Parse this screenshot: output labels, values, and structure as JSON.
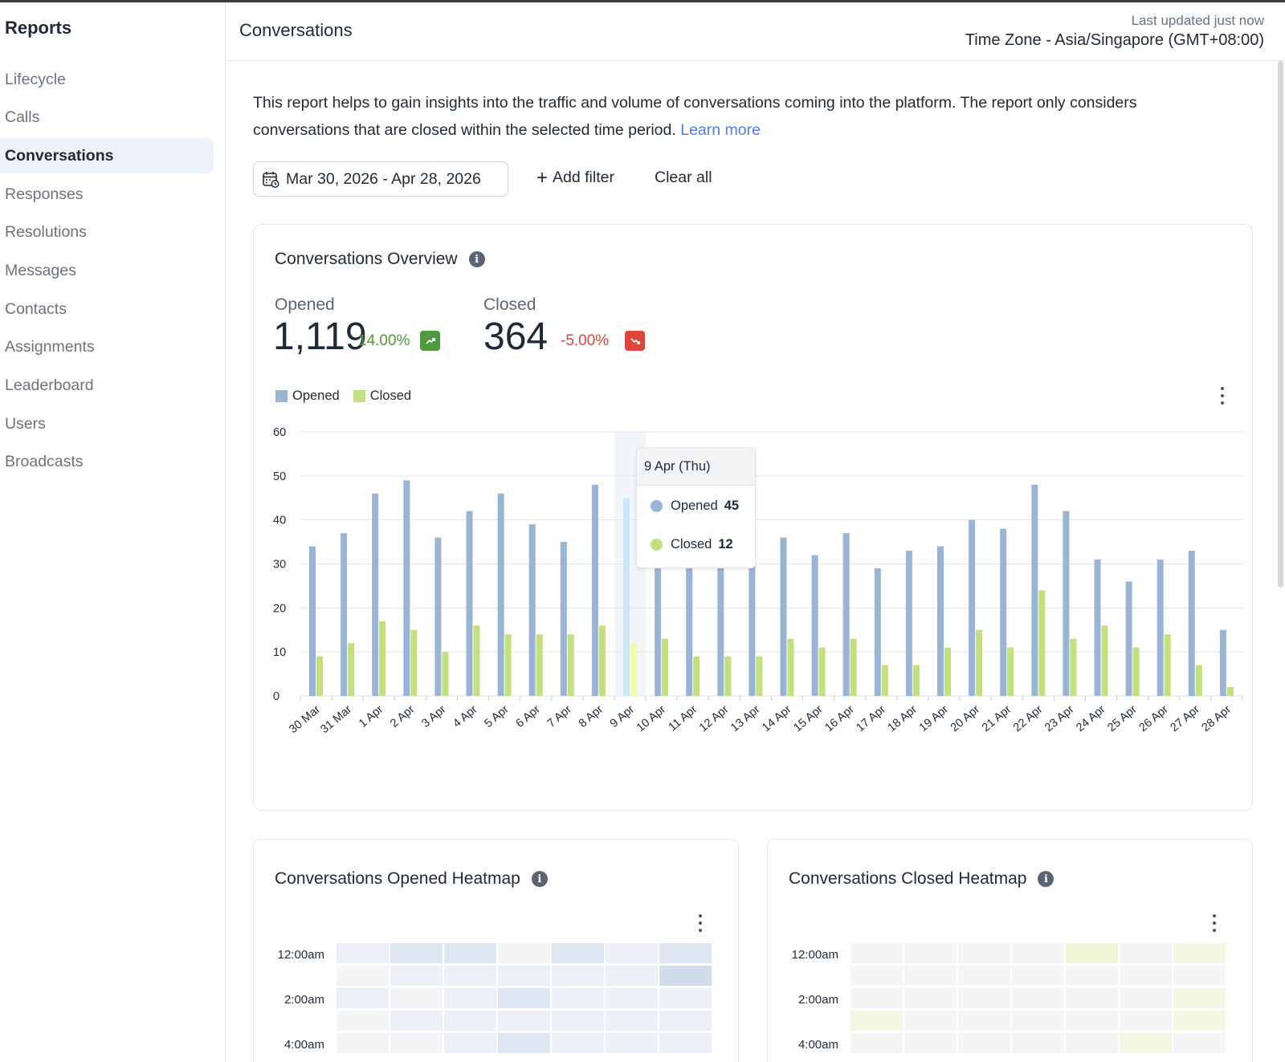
{
  "sidebar": {
    "title": "Reports",
    "items": [
      {
        "label": "Lifecycle",
        "active": false
      },
      {
        "label": "Calls",
        "active": false
      },
      {
        "label": "Conversations",
        "active": true
      },
      {
        "label": "Responses",
        "active": false
      },
      {
        "label": "Resolutions",
        "active": false
      },
      {
        "label": "Messages",
        "active": false
      },
      {
        "label": "Contacts",
        "active": false
      },
      {
        "label": "Assignments",
        "active": false
      },
      {
        "label": "Leaderboard",
        "active": false
      },
      {
        "label": "Users",
        "active": false
      },
      {
        "label": "Broadcasts",
        "active": false
      }
    ]
  },
  "header": {
    "title": "Conversations",
    "last_updated": "Last updated just now",
    "timezone": "Time Zone - Asia/Singapore (GMT+08:00)"
  },
  "description": {
    "text": "This report helps to gain insights into the traffic and volume of conversations coming into the platform. The report only considers conversations that are closed within the selected time period.",
    "learn_more": "Learn more"
  },
  "filters": {
    "date_range": "Mar 30, 2026 - Apr 28, 2026",
    "add_filter": "Add filter",
    "clear_all": "Clear all"
  },
  "overview": {
    "title": "Conversations Overview",
    "opened": {
      "label": "Opened",
      "value": "1,119",
      "change": "14.00%",
      "trend": "up"
    },
    "closed": {
      "label": "Closed",
      "value": "364",
      "change": "-5.00%",
      "trend": "down"
    },
    "tooltip": {
      "date": "9 Apr (Thu)",
      "opened_label": "Opened",
      "opened_value": "45",
      "closed_label": "Closed",
      "closed_value": "12"
    }
  },
  "colors": {
    "opened": "#9ab4d6",
    "closed": "#c2e07e",
    "highlight_opened": "#cde9f8",
    "highlight_closed": "#f4f9a8",
    "positive": "#4f9a3e",
    "negative": "#e0453b",
    "link": "#4a7df0"
  },
  "chart_data": {
    "type": "bar",
    "categories": [
      "30 Mar",
      "31 Mar",
      "1 Apr",
      "2 Apr",
      "3 Apr",
      "4 Apr",
      "5 Apr",
      "6 Apr",
      "7 Apr",
      "8 Apr",
      "9 Apr",
      "10 Apr",
      "11 Apr",
      "12 Apr",
      "13 Apr",
      "14 Apr",
      "15 Apr",
      "16 Apr",
      "17 Apr",
      "18 Apr",
      "19 Apr",
      "20 Apr",
      "21 Apr",
      "22 Apr",
      "23 Apr",
      "24 Apr",
      "25 Apr",
      "26 Apr",
      "27 Apr",
      "28 Apr"
    ],
    "series": [
      {
        "name": "Opened",
        "values": [
          34,
          37,
          46,
          49,
          36,
          42,
          46,
          39,
          35,
          48,
          45,
          33,
          33,
          33,
          33,
          36,
          32,
          37,
          29,
          33,
          34,
          40,
          38,
          48,
          42,
          31,
          26,
          31,
          33,
          15
        ]
      },
      {
        "name": "Closed",
        "values": [
          9,
          12,
          17,
          15,
          10,
          16,
          14,
          14,
          14,
          16,
          12,
          13,
          9,
          9,
          9,
          13,
          11,
          13,
          7,
          7,
          11,
          15,
          11,
          24,
          13,
          16,
          11,
          14,
          7,
          2
        ]
      }
    ],
    "ylim": [
      0,
      60
    ],
    "yticks": [
      0,
      10,
      20,
      30,
      40,
      50,
      60
    ],
    "highlight_index": 10,
    "grid": true,
    "legend": "top-left"
  },
  "heatmaps": {
    "opened": {
      "title": "Conversations Opened Heatmap",
      "time_labels": [
        "12:00am",
        "2:00am",
        "4:00am"
      ],
      "levels": [
        [
          1,
          2,
          2,
          0,
          2,
          1,
          2
        ],
        [
          0,
          1,
          1,
          1,
          1,
          1,
          3
        ],
        [
          1,
          0,
          1,
          2,
          1,
          1,
          1
        ],
        [
          0,
          1,
          1,
          1,
          1,
          1,
          1
        ],
        [
          0,
          0,
          1,
          2,
          1,
          1,
          1
        ]
      ]
    },
    "closed": {
      "title": "Conversations Closed Heatmap",
      "time_labels": [
        "12:00am",
        "2:00am",
        "4:00am"
      ],
      "levels": [
        [
          0,
          0,
          0,
          0,
          2,
          0,
          1
        ],
        [
          0,
          0,
          0,
          0,
          0,
          0,
          0
        ],
        [
          0,
          0,
          0,
          0,
          0,
          0,
          1
        ],
        [
          1,
          0,
          0,
          0,
          0,
          0,
          1
        ],
        [
          0,
          0,
          0,
          0,
          0,
          1,
          0
        ]
      ]
    }
  }
}
